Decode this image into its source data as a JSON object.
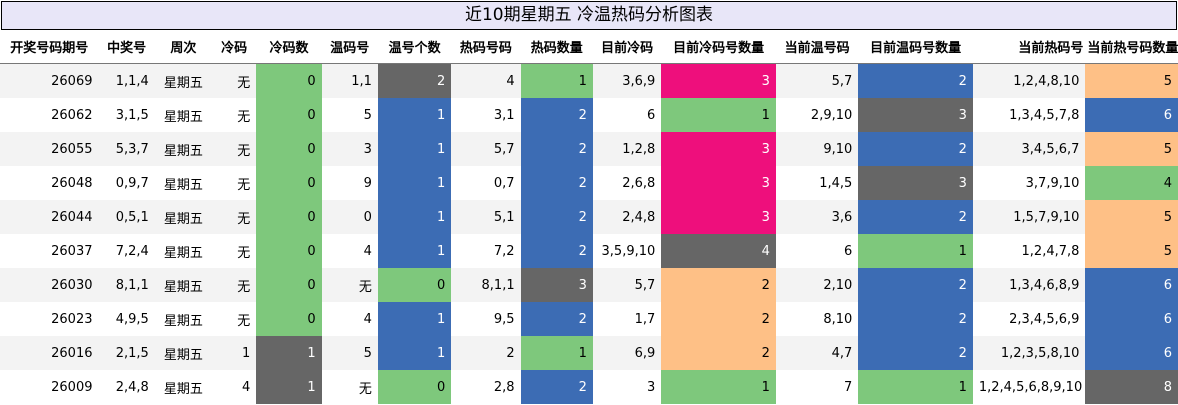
{
  "title": "近10期星期五 冷温热码分析图表",
  "headers": [
    "开奖号码期号",
    "中奖号",
    "周次",
    "冷码",
    "冷码数",
    "温码号",
    "温号个数",
    "热码号码",
    "热码数量",
    "目前冷码",
    "目前冷码号数量",
    "当前温号码",
    "目前温码号数量",
    "当前热码号",
    "当前热号码数量"
  ],
  "colors": {
    "green": "#7ec87c",
    "blue": "#3c6cb4",
    "gray": "#666666",
    "pink": "#ee0f7c",
    "orange": "#fec086"
  },
  "rows": [
    {
      "cells": [
        "26069",
        "1,1,4",
        "星期五",
        "无",
        "0",
        "1,1",
        "2",
        "4",
        "1",
        "3,6,9",
        "3",
        "5,7",
        "2",
        "1,2,4,8,10",
        "5"
      ],
      "colors": {
        "4": "green",
        "6": "gray",
        "8": "green",
        "10": "pink",
        "12": "blue",
        "14": "orange"
      }
    },
    {
      "cells": [
        "26062",
        "3,1,5",
        "星期五",
        "无",
        "0",
        "5",
        "1",
        "3,1",
        "2",
        "6",
        "1",
        "2,9,10",
        "3",
        "1,3,4,5,7,8",
        "6"
      ],
      "colors": {
        "4": "green",
        "6": "blue",
        "8": "blue",
        "10": "green",
        "12": "gray",
        "14": "blue"
      }
    },
    {
      "cells": [
        "26055",
        "5,3,7",
        "星期五",
        "无",
        "0",
        "3",
        "1",
        "5,7",
        "2",
        "1,2,8",
        "3",
        "9,10",
        "2",
        "3,4,5,6,7",
        "5"
      ],
      "colors": {
        "4": "green",
        "6": "blue",
        "8": "blue",
        "10": "pink",
        "12": "blue",
        "14": "orange"
      }
    },
    {
      "cells": [
        "26048",
        "0,9,7",
        "星期五",
        "无",
        "0",
        "9",
        "1",
        "0,7",
        "2",
        "2,6,8",
        "3",
        "1,4,5",
        "3",
        "3,7,9,10",
        "4"
      ],
      "colors": {
        "4": "green",
        "6": "blue",
        "8": "blue",
        "10": "pink",
        "12": "gray",
        "14": "green"
      }
    },
    {
      "cells": [
        "26044",
        "0,5,1",
        "星期五",
        "无",
        "0",
        "0",
        "1",
        "5,1",
        "2",
        "2,4,8",
        "3",
        "3,6",
        "2",
        "1,5,7,9,10",
        "5"
      ],
      "colors": {
        "4": "green",
        "6": "blue",
        "8": "blue",
        "10": "pink",
        "12": "blue",
        "14": "orange"
      }
    },
    {
      "cells": [
        "26037",
        "7,2,4",
        "星期五",
        "无",
        "0",
        "4",
        "1",
        "7,2",
        "2",
        "3,5,9,10",
        "4",
        "6",
        "1",
        "1,2,4,7,8",
        "5"
      ],
      "colors": {
        "4": "green",
        "6": "blue",
        "8": "blue",
        "10": "gray",
        "12": "green",
        "14": "orange"
      }
    },
    {
      "cells": [
        "26030",
        "8,1,1",
        "星期五",
        "无",
        "0",
        "无",
        "0",
        "8,1,1",
        "3",
        "5,7",
        "2",
        "2,10",
        "2",
        "1,3,4,6,8,9",
        "6"
      ],
      "colors": {
        "4": "green",
        "6": "green",
        "8": "gray",
        "10": "orange",
        "12": "blue",
        "14": "blue"
      }
    },
    {
      "cells": [
        "26023",
        "4,9,5",
        "星期五",
        "无",
        "0",
        "4",
        "1",
        "9,5",
        "2",
        "1,7",
        "2",
        "8,10",
        "2",
        "2,3,4,5,6,9",
        "6"
      ],
      "colors": {
        "4": "green",
        "6": "blue",
        "8": "blue",
        "10": "orange",
        "12": "blue",
        "14": "blue"
      }
    },
    {
      "cells": [
        "26016",
        "2,1,5",
        "星期五",
        "1",
        "1",
        "5",
        "1",
        "2",
        "1",
        "6,9",
        "2",
        "4,7",
        "2",
        "1,2,3,5,8,10",
        "6"
      ],
      "colors": {
        "4": "gray",
        "6": "blue",
        "8": "green",
        "10": "orange",
        "12": "blue",
        "14": "blue"
      }
    },
    {
      "cells": [
        "26009",
        "2,4,8",
        "星期五",
        "4",
        "1",
        "无",
        "0",
        "2,8",
        "2",
        "3",
        "1",
        "7",
        "1",
        "1,2,4,5,6,8,9,10",
        "8"
      ],
      "colors": {
        "4": "gray",
        "6": "green",
        "8": "blue",
        "10": "green",
        "12": "green",
        "14": "gray"
      }
    }
  ]
}
